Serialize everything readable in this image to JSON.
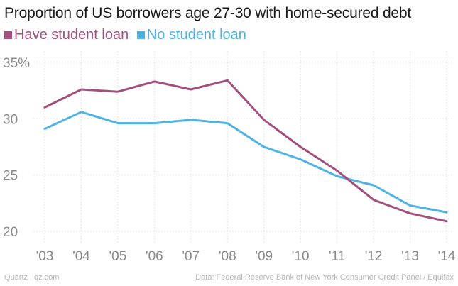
{
  "chart_data": {
    "type": "line",
    "title": "Proportion of US borrowers age 27-30 with home-secured debt",
    "categories": [
      "'03",
      "'04",
      "'05",
      "'06",
      "'07",
      "'08",
      "'09",
      "'10",
      "'11",
      "'12",
      "'13",
      "'14"
    ],
    "series": [
      {
        "name": "Have student loan",
        "color": "#a2507f",
        "values": [
          31.0,
          32.6,
          32.4,
          33.3,
          32.6,
          33.4,
          29.9,
          27.5,
          25.4,
          22.8,
          21.6,
          20.9
        ]
      },
      {
        "name": "No student loan",
        "color": "#4eb3e3",
        "values": [
          29.1,
          30.6,
          29.6,
          29.6,
          29.9,
          29.6,
          27.5,
          26.4,
          24.9,
          24.1,
          22.3,
          21.7
        ]
      }
    ],
    "y_ticks": [
      {
        "value": 20,
        "label": "20"
      },
      {
        "value": 25,
        "label": "25"
      },
      {
        "value": 30,
        "label": "30"
      },
      {
        "value": 35,
        "label": "35%"
      }
    ],
    "ylim": [
      19,
      36
    ],
    "grid": true,
    "legend_position": "top-left"
  },
  "footer": {
    "source_left": "Quartz | qz.com",
    "source_right": "Data: Federal Reserve Bank of New York Consumer Credit Panel / Equifax"
  }
}
